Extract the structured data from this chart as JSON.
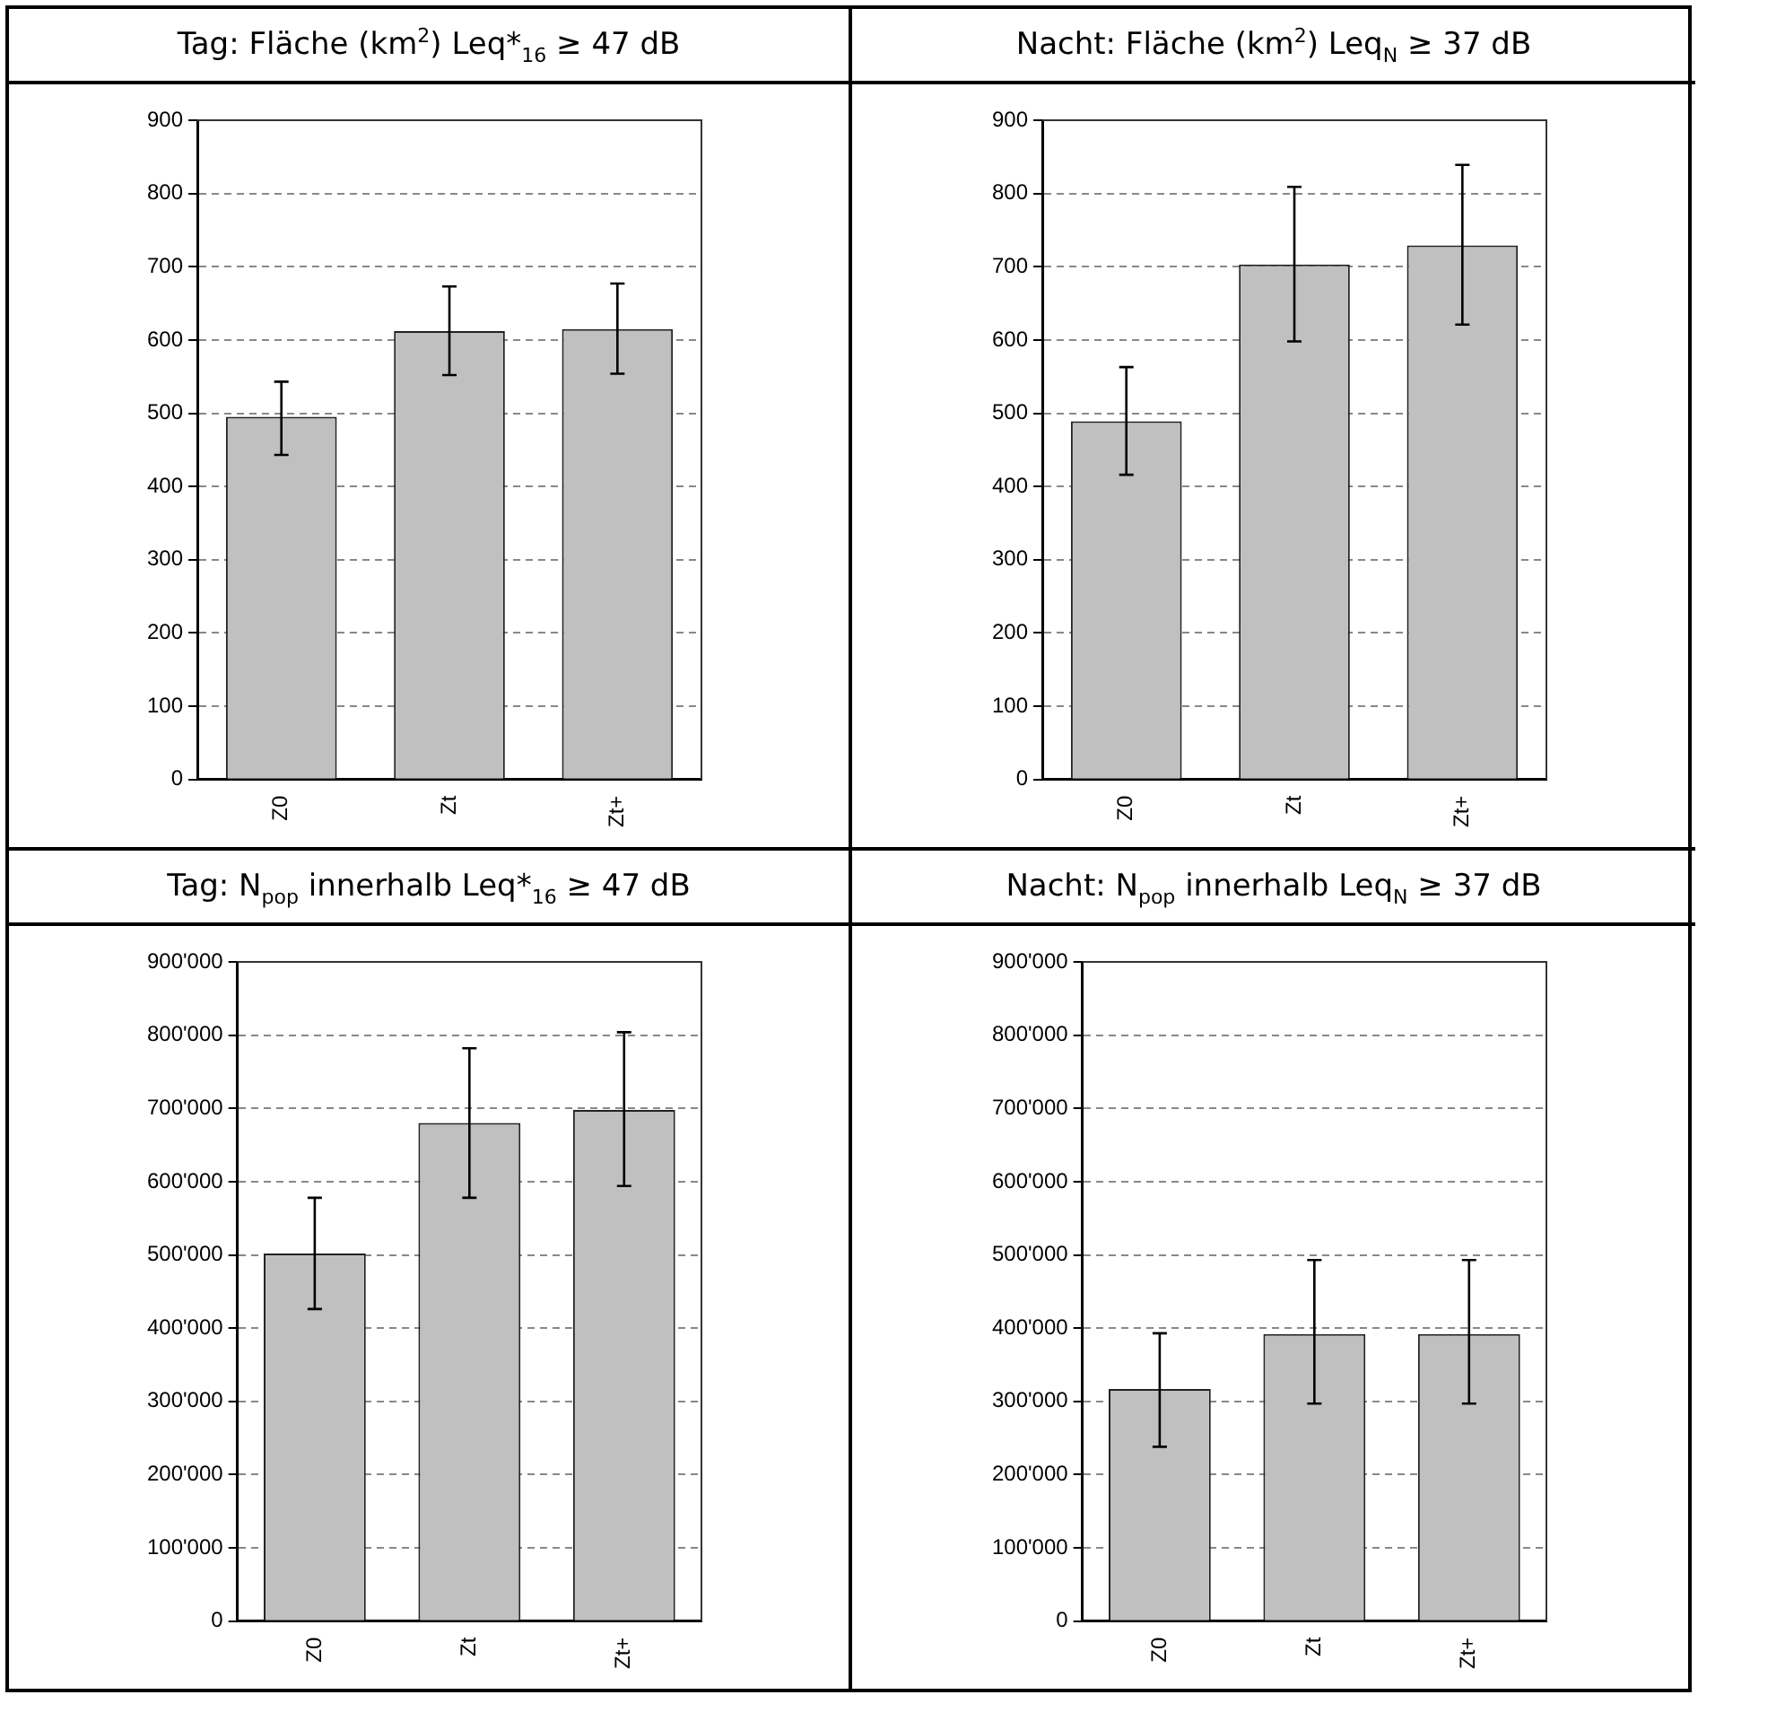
{
  "chart_data": [
    {
      "type": "bar",
      "title": "Tag: Fläche (km$^{2}$) Leq*$_{16}$ ≥ 47 dB",
      "categories": [
        "Z0",
        "Zt",
        "Zt+"
      ],
      "values": [
        495,
        612,
        615
      ],
      "errors": [
        [
          443,
          543
        ],
        [
          552,
          673
        ],
        [
          554,
          677
        ]
      ],
      "color": "#c0c0c0",
      "ylim": [
        0,
        900
      ],
      "yticks": [
        0,
        100,
        200,
        300,
        400,
        500,
        600,
        700,
        800,
        900
      ],
      "grid": "y",
      "legend": false
    },
    {
      "type": "bar",
      "title": "Nacht: Fläche (km$^{2}$) Leq$_{N}$ ≥ 37 dB",
      "categories": [
        "Z0",
        "Zt",
        "Zt+"
      ],
      "values": [
        489,
        703,
        729
      ],
      "errors": [
        [
          416,
          563
        ],
        [
          598,
          809
        ],
        [
          621,
          839
        ]
      ],
      "color": "#c0c0c0",
      "ylim": [
        0,
        900
      ],
      "yticks": [
        0,
        100,
        200,
        300,
        400,
        500,
        600,
        700,
        800,
        900
      ],
      "grid": "y",
      "legend": false
    },
    {
      "type": "bar",
      "title": "Tag: N$_{pop}$ innerhalb Leq*$_{16}$ ≥ 47 dB",
      "categories": [
        "Z0",
        "Zt",
        "Zt+"
      ],
      "values": [
        502000,
        680000,
        698000
      ],
      "errors": [
        [
          426000,
          578000
        ],
        [
          578000,
          782000
        ],
        [
          594000,
          804000
        ]
      ],
      "color": "#c0c0c0",
      "ylim": [
        0,
        900000
      ],
      "yticks": [
        0,
        {
          "value": 100000,
          "label": "100'000"
        },
        {
          "value": 200000,
          "label": "200'000"
        },
        {
          "value": 300000,
          "label": "300'000"
        },
        {
          "value": 400000,
          "label": "400'000"
        },
        {
          "value": 500000,
          "label": "500'000"
        },
        {
          "value": 600000,
          "label": "600'000"
        },
        {
          "value": 700000,
          "label": "700'000"
        },
        {
          "value": 800000,
          "label": "800'000"
        },
        {
          "value": 900000,
          "label": "900'000"
        }
      ],
      "grid": "y",
      "legend": false
    },
    {
      "type": "bar",
      "title": "Nacht: N$_{pop}$ innerhalb Leq$_{N}$ ≥ 37 dB",
      "categories": [
        "Z0",
        "Zt",
        "Zt+"
      ],
      "values": [
        317000,
        392000,
        392000
      ],
      "errors": [
        [
          238000,
          393000
        ],
        [
          297000,
          493000
        ],
        [
          297000,
          493000
        ]
      ],
      "color": "#c0c0c0",
      "ylim": [
        0,
        900000
      ],
      "yticks": [
        0,
        {
          "value": 100000,
          "label": "100'000"
        },
        {
          "value": 200000,
          "label": "200'000"
        },
        {
          "value": 300000,
          "label": "300'000"
        },
        {
          "value": 400000,
          "label": "400'000"
        },
        {
          "value": 500000,
          "label": "500'000"
        },
        {
          "value": 600000,
          "label": "600'000"
        },
        {
          "value": 700000,
          "label": "700'000"
        },
        {
          "value": 800000,
          "label": "800'000"
        },
        {
          "value": 900000,
          "label": "900'000"
        }
      ],
      "grid": "y",
      "legend": false
    }
  ]
}
